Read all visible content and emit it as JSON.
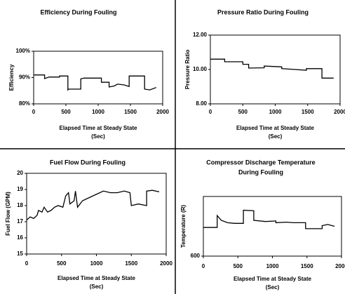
{
  "chart_data": [
    {
      "type": "line",
      "title": "Efficiency During Fouling",
      "y_label": "Efficiency",
      "x_label": [
        "Elapsed Time at Steady State",
        "(Sec)"
      ],
      "xlim": [
        0,
        2000
      ],
      "xticks": [
        0,
        500,
        1000,
        1500,
        2000
      ],
      "ylim": [
        80,
        100
      ],
      "yticks": [
        {
          "value": 80,
          "label": "80%"
        },
        {
          "value": 90,
          "label": "90%"
        },
        {
          "value": 100,
          "label": "100%"
        }
      ],
      "color": "#000000",
      "x": [
        0,
        170,
        170,
        240,
        400,
        400,
        530,
        530,
        540,
        730,
        730,
        780,
        1050,
        1050,
        1170,
        1170,
        1250,
        1300,
        1400,
        1480,
        1480,
        1720,
        1720,
        1800,
        1900
      ],
      "values": [
        91,
        91,
        89.6,
        90.2,
        90.2,
        90.6,
        90.6,
        85.3,
        85.6,
        85.6,
        89.5,
        89.8,
        89.8,
        88.2,
        88.2,
        86.4,
        86.8,
        87.5,
        87.2,
        86.6,
        90.6,
        90.6,
        85.6,
        85.3,
        86.2
      ]
    },
    {
      "type": "line",
      "title": "Pressure Ratio During Fouling",
      "y_label": "Pressure Ratio",
      "x_label": [
        "Elapsed Time at Steady State",
        "(Sec)"
      ],
      "xlim": [
        0,
        2000
      ],
      "xticks": [
        0,
        500,
        1000,
        1500,
        2000
      ],
      "ylim": [
        8,
        12
      ],
      "yticks": [
        {
          "value": 8,
          "label": "8.00"
        },
        {
          "value": 10,
          "label": "10.00"
        },
        {
          "value": 12,
          "label": "12.00"
        }
      ],
      "color": "#000000",
      "x": [
        0,
        220,
        220,
        500,
        500,
        590,
        590,
        830,
        830,
        1100,
        1100,
        1300,
        1480,
        1480,
        1720,
        1720,
        1900
      ],
      "values": [
        10.6,
        10.6,
        10.45,
        10.45,
        10.3,
        10.3,
        10.08,
        10.1,
        10.2,
        10.15,
        10.05,
        10.0,
        9.95,
        10.05,
        10.05,
        9.5,
        9.5
      ]
    },
    {
      "type": "line",
      "title": "Fuel Flow During Fouling",
      "y_label": "Fuel Flow (GPM)",
      "x_label": [
        "Elapsed Time at Steady State",
        "(Sec)"
      ],
      "xlim": [
        0,
        2000
      ],
      "xticks": [
        0,
        500,
        1000,
        1500,
        2000
      ],
      "ylim": [
        15,
        20
      ],
      "yticks": [
        15,
        16,
        17,
        18,
        19,
        20
      ],
      "color": "#000000",
      "x": [
        0,
        50,
        100,
        150,
        170,
        220,
        250,
        300,
        350,
        400,
        450,
        520,
        560,
        600,
        620,
        680,
        700,
        730,
        800,
        900,
        1000,
        1100,
        1200,
        1300,
        1400,
        1480,
        1500,
        1600,
        1720,
        1720,
        1800,
        1900
      ],
      "values": [
        17.1,
        17.3,
        17.2,
        17.4,
        17.7,
        17.6,
        17.9,
        17.6,
        17.7,
        17.9,
        18.0,
        17.9,
        18.6,
        18.8,
        18.1,
        18.3,
        18.9,
        17.9,
        18.3,
        18.5,
        18.7,
        18.9,
        18.8,
        18.8,
        18.9,
        18.8,
        18.0,
        18.1,
        18.0,
        18.9,
        18.95,
        18.85
      ]
    },
    {
      "type": "line",
      "title": [
        "Compressor Discharge Temperature",
        "During Fouling"
      ],
      "y_label": "Temperature (R)",
      "x_label": [
        "Elapsed Time at Steady State",
        "(Sec)"
      ],
      "xlim": [
        0,
        2000
      ],
      "xticks": [
        0,
        500,
        1000,
        1500,
        2000
      ],
      "ylim": [
        600,
        700
      ],
      "yticks": [
        600
      ],
      "color": "#000000",
      "x": [
        0,
        200,
        200,
        260,
        350,
        450,
        580,
        580,
        730,
        730,
        900,
        1050,
        1050,
        1200,
        1300,
        1480,
        1480,
        1720,
        1720,
        1800,
        1900
      ],
      "values": [
        648,
        648,
        668,
        660,
        656,
        655,
        655,
        677,
        676,
        660,
        658,
        659,
        656,
        657,
        656,
        656,
        646,
        646,
        651,
        653,
        650
      ]
    }
  ]
}
